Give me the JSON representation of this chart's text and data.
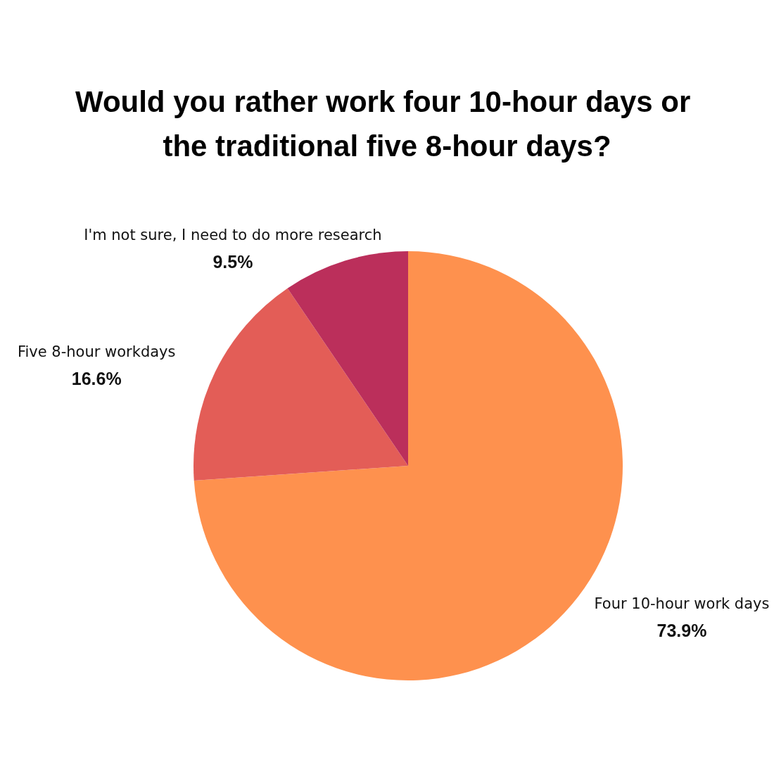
{
  "chart_data": {
    "type": "pie",
    "title": "Would you rather work four 10-hour days or the traditional five 8-hour days?",
    "categories": [
      "Four 10-hour work days",
      "Five 8-hour workdays",
      "I'm not sure, I need to do more research"
    ],
    "values": [
      73.9,
      16.6,
      9.5
    ],
    "colors": [
      "#fe914e",
      "#e35d57",
      "#bb2f5b"
    ],
    "value_labels": [
      "73.9%",
      "16.6%",
      "9.5%"
    ],
    "legend": false
  }
}
